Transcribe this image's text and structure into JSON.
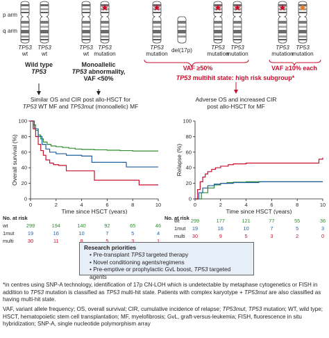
{
  "arm_labels": {
    "p": "p arm",
    "q": "q arm"
  },
  "chromosomes": [
    {
      "tp": "TP53",
      "sub": "wt"
    },
    {
      "tp": "TP53",
      "sub": "wt"
    },
    {
      "tp": "TP53",
      "sub": "wt"
    },
    {
      "tp": "TP53",
      "sub": "mutation"
    },
    {
      "tp": "TP53",
      "sub": "mutation"
    },
    {
      "tp": "",
      "sub": "del(17p)"
    },
    {
      "tp": "TP53",
      "sub": "mutation"
    },
    {
      "tp": "TP53",
      "sub": "mutation"
    },
    {
      "tp": "TP53",
      "sub": "mutation"
    },
    {
      "tp": "TP53",
      "sub": "mutation"
    }
  ],
  "colors": {
    "red": "#c8102e",
    "mark_orange": "#e87722",
    "green": "#2e8b2e",
    "blue": "#1f5e9e",
    "box": "#e6eef7"
  },
  "group_wild": {
    "line1": "Wild type",
    "line2": "TP53"
  },
  "group_mono": {
    "line1": "Monoallelic",
    "line2a": "TP53",
    "line2b": " abnormality,",
    "line3": "VAF <50%"
  },
  "vaf1": "VAF ≥50%",
  "vaf2": "VAF ≥10% each",
  "multihit": {
    "tp": "TP53",
    "rest": " multihit state: high risk subgroup*"
  },
  "left_caption": {
    "l1": "Similar OS and CIR post allo-HSCT for",
    "l2a": "TP53",
    "l2b": " WT MF and ",
    "l2c": "TP53mut",
    "l2d": " (monoallelic) MF"
  },
  "right_caption": {
    "l1": "Adverse OS and increased CIR",
    "l2": "post allo-HSCT for MF"
  },
  "chart_data": [
    {
      "type": "line",
      "ylabel": "Overall survival (%)",
      "xlabel": "Time since HSCT (years)",
      "xlim": [
        0,
        10
      ],
      "ylim": [
        0,
        100
      ],
      "xticks": [
        0,
        2,
        4,
        6,
        8,
        10
      ],
      "yticks": [
        0,
        20,
        40,
        60,
        80,
        100
      ],
      "series": [
        {
          "name": "wt",
          "color": "#2e8b2e",
          "x": [
            0,
            0.2,
            0.4,
            0.6,
            0.8,
            1,
            1.3,
            1.6,
            2,
            2.5,
            3,
            3.5,
            4,
            5,
            6,
            7,
            8,
            10
          ],
          "y": [
            100,
            95,
            88,
            82,
            77,
            73,
            70,
            68,
            67,
            66,
            65,
            64,
            63.5,
            63,
            62.5,
            62,
            61.5,
            61.5
          ]
        },
        {
          "name": "1mut",
          "color": "#1f5e9e",
          "x": [
            0,
            0.3,
            0.6,
            0.9,
            1.2,
            1.5,
            2,
            2.8,
            4,
            4.8,
            4.8,
            7.5,
            7.5,
            10
          ],
          "y": [
            100,
            90,
            80,
            70,
            64,
            60,
            58,
            56,
            55,
            55,
            47,
            47,
            41,
            41
          ]
        },
        {
          "name": "multi",
          "color": "#c8102e",
          "x": [
            0,
            0.2,
            0.4,
            0.6,
            0.8,
            1,
            1.2,
            1.5,
            1.8,
            2.2,
            2.8,
            2.8,
            5,
            5,
            8.5,
            8.5,
            10
          ],
          "y": [
            100,
            90,
            80,
            70,
            62,
            56,
            50,
            46,
            44,
            43,
            43,
            36,
            36,
            24,
            24,
            18,
            18
          ]
        }
      ],
      "at_risk_x": [
        0,
        2,
        4,
        6,
        8,
        10
      ],
      "at_risk": {
        "wt": [
          299,
          194,
          140,
          92,
          65,
          46
        ],
        "1mut": [
          19,
          16,
          10,
          7,
          5,
          4
        ],
        "multi": [
          30,
          11,
          8,
          5,
          3,
          1
        ]
      }
    },
    {
      "type": "line",
      "ylabel": "Relapse (%)",
      "xlabel": "Time since HSCT (years)",
      "xlim": [
        0,
        10
      ],
      "ylim": [
        0,
        100
      ],
      "xticks": [
        0,
        2,
        4,
        6,
        8,
        10
      ],
      "yticks": [
        0,
        20,
        40,
        60,
        80,
        100
      ],
      "series": [
        {
          "name": "wt",
          "color": "#2e8b2e",
          "x": [
            0,
            0.5,
            1,
            1.5,
            2,
            2.5,
            3,
            4,
            5,
            6,
            8,
            10
          ],
          "y": [
            0,
            8,
            14,
            18,
            20,
            21,
            21.5,
            22,
            22,
            22,
            22,
            22
          ]
        },
        {
          "name": "1mut",
          "color": "#1f5e9e",
          "x": [
            0,
            0.3,
            0.6,
            1,
            1.5,
            2,
            3,
            5,
            5.5,
            10
          ],
          "y": [
            0,
            8,
            14,
            17,
            19,
            20,
            21,
            22,
            22,
            22
          ]
        },
        {
          "name": "multi",
          "color": "#c8102e",
          "x": [
            0,
            0.2,
            0.4,
            0.6,
            0.8,
            1,
            1.3,
            1.6,
            2,
            2.6,
            3,
            4,
            5,
            6,
            7,
            8,
            9.5,
            9.7,
            10
          ],
          "y": [
            0,
            12,
            22,
            28,
            32,
            35,
            38,
            40,
            42,
            44,
            45,
            46,
            46,
            46,
            46,
            46,
            46,
            51,
            53
          ]
        }
      ],
      "at_risk_x": [
        0,
        2,
        4,
        6,
        8,
        10
      ],
      "at_risk": {
        "wt": [
          299,
          177,
          121,
          77,
          55,
          36
        ],
        "1mut": [
          19,
          16,
          10,
          7,
          5,
          3
        ],
        "multi": [
          30,
          9,
          5,
          3,
          2,
          0
        ]
      }
    }
  ],
  "at_risk_header": "No. at risk",
  "row_labels": {
    "wt": "wt",
    "1mut": "1mut",
    "multi": "multi"
  },
  "research": {
    "title": "Research priorities",
    "i1a": "Pre-transplant ",
    "i1b": "TP53",
    "i1c": " targeted therapy",
    "i2": "Novel conditioning agents/regimens",
    "i3a": "Pre-emptive or prophylactic GvL boost, ",
    "i3b": "TP53",
    "i3c": " targeted agents"
  },
  "footnote1": {
    "a": "*in centres using SNP-A technology, identification of 17p CN-LOH which is undetectable by metaphase cytogenetics or FISH in addition to ",
    "b": "TP53",
    "c": " mutation is classified as ",
    "d": "TP53",
    "e": " multi-hit state. Patients with complex karyotype + ",
    "f": "TP53mut",
    "g": " are also classified as having multi-hit state."
  },
  "footnote2": {
    "a": "VAF, variant allele frequency; OS, overall survival; CIR, cumulative incidence of relapse; ",
    "b": "TP53mut",
    "c": ", ",
    "d": "TP53",
    "e": " mutation; WT, wild type; HSCT, hematopoietic stem cell transplantation; MF, myelofibrosis; GvL, graft-versus-leukemia; FISH, fluorescence in situ hybridization; SNP-A, single nucleotide polymorphism array"
  }
}
